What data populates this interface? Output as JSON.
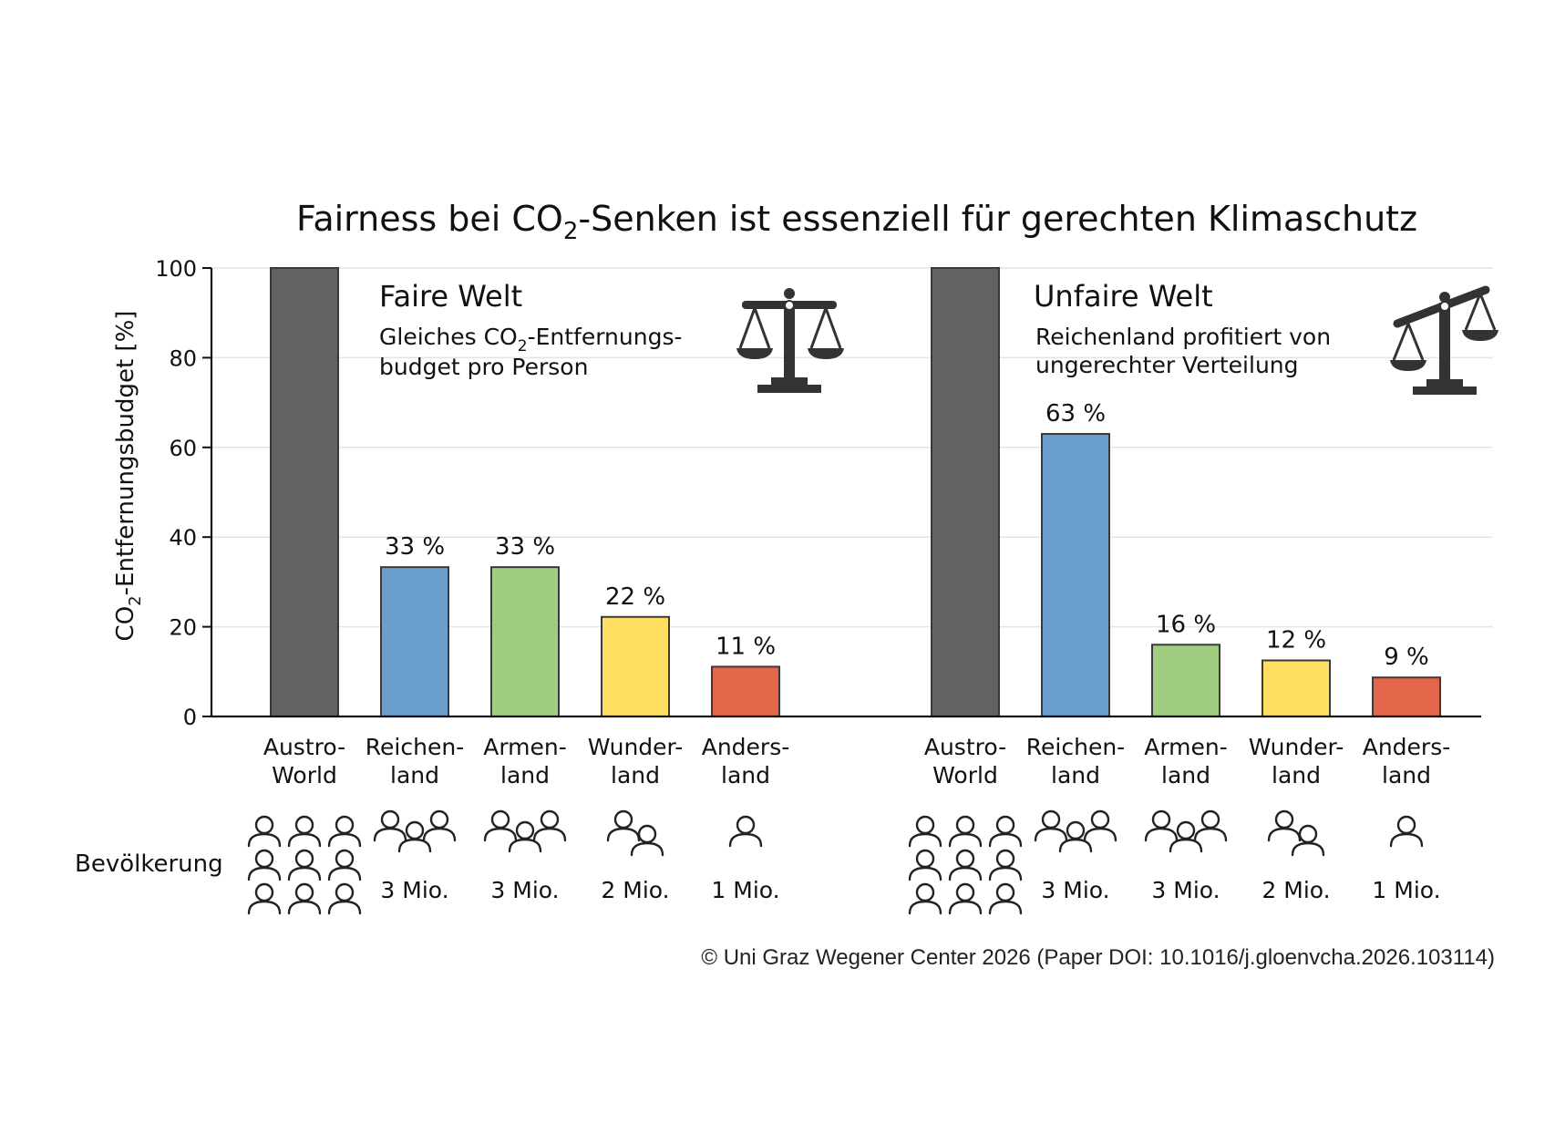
{
  "chart_data": {
    "type": "bar",
    "title": {
      "pre": "Fairness bei CO",
      "sub": "2",
      "post": "-Senken ist essenziell für gerechten Klimaschutz"
    },
    "ylabel": {
      "pre": "CO",
      "sub": "2",
      "post": "-Entfernungsbudget [%]"
    },
    "ylim": [
      0,
      100
    ],
    "yticks": [
      "0",
      "20",
      "40",
      "60",
      "80",
      "100"
    ],
    "grid": true,
    "categories": [
      [
        "Austro-",
        "World"
      ],
      [
        "Reichen-",
        "land"
      ],
      [
        "Armen-",
        "land"
      ],
      [
        "Wunder-",
        "land"
      ],
      [
        "Anders-",
        "land"
      ]
    ],
    "colors": [
      "#626262",
      "#6a9ecf",
      "#a0cd80",
      "#ffdf62",
      "#e3654a"
    ],
    "panels": [
      {
        "name": "Faire Welt",
        "subtitle": {
          "line1_pre": "Gleiches CO",
          "line1_sub": "2",
          "line1_post": "-Entfernungs-",
          "line2": "budget pro Person"
        },
        "values": [
          100,
          33.3,
          33.3,
          22.2,
          11.1
        ],
        "labels": [
          "",
          "33 %",
          "33 %",
          "22 %",
          "11 %"
        ],
        "scale_icon": "balanced-scale-icon"
      },
      {
        "name": "Unfaire Welt",
        "subtitle": {
          "line1_pre": "Reichenland profitiert von",
          "line1_sub": "",
          "line1_post": "",
          "line2": "ungerechter Verteilung"
        },
        "values": [
          100,
          63,
          16,
          12.5,
          8.7
        ],
        "labels": [
          "",
          "63 %",
          "16 %",
          "12 %",
          "9 %"
        ],
        "scale_icon": "tilted-scale-icon"
      }
    ]
  },
  "population": {
    "row_label": "Bevölkerung",
    "persons_per_region": [
      9,
      3,
      3,
      2,
      1
    ],
    "labels": [
      "",
      "3 Mio.",
      "3 Mio.",
      "2 Mio.",
      "1 Mio."
    ]
  },
  "copyright": "© Uni Graz Wegener Center 2026 (Paper DOI: 10.1016/j.gloenvcha.2026.103114)"
}
